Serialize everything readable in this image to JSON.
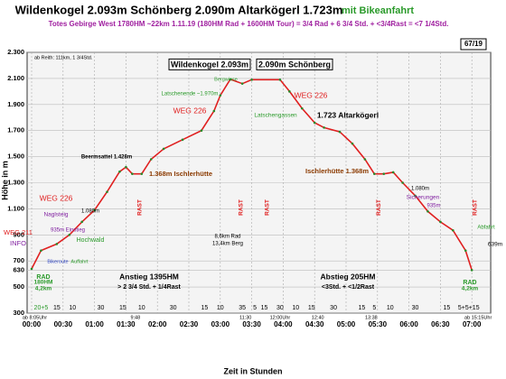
{
  "chart_data": {
    "type": "line",
    "title": "Wildenkogel 2.093m Schönberg 2.090m Altarkögerl 1.723m",
    "title_extra": "mit Bikeanfahrt",
    "subtitle": "Totes Gebirge West 1780HM ~22km 1.11.19 (180HM Rad + 1600HM Tour) = 3/4 Rad + 6 3/4 Std. + <3/4Rast = <7 1/4Std.",
    "badge": "67/19",
    "x_label": "Zeit in Stunden",
    "y_label": "Höhe in m",
    "xlim": [
      0,
      7.3
    ],
    "ylim": [
      300,
      2300
    ],
    "xticks": [
      {
        "value": 0,
        "label": "00:00"
      },
      {
        "value": 0.5,
        "label": "00:30"
      },
      {
        "value": 1,
        "label": "01:00"
      },
      {
        "value": 1.5,
        "label": "01:30"
      },
      {
        "value": 2,
        "label": "02:00"
      },
      {
        "value": 2.5,
        "label": "02:30"
      },
      {
        "value": 3,
        "label": "03:00"
      },
      {
        "value": 3.5,
        "label": "03:30"
      },
      {
        "value": 4,
        "label": "04:00"
      },
      {
        "value": 4.5,
        "label": "04:30"
      },
      {
        "value": 5,
        "label": "05:00"
      },
      {
        "value": 5.5,
        "label": "05:30"
      },
      {
        "value": 6,
        "label": "06:00"
      },
      {
        "value": 6.5,
        "label": "06:30"
      },
      {
        "value": 7,
        "label": "07:00"
      }
    ],
    "yticks": [
      {
        "value": 2300,
        "label": "2.300"
      },
      {
        "value": 2100,
        "label": "2.100"
      },
      {
        "value": 1900,
        "label": "1.900"
      },
      {
        "value": 1700,
        "label": "1.700"
      },
      {
        "value": 1500,
        "label": "1.500"
      },
      {
        "value": 1300,
        "label": "1.300"
      },
      {
        "value": 1100,
        "label": "1.100"
      },
      900,
      700,
      630,
      500,
      300
    ],
    "grid": true,
    "series": [
      {
        "name": "Höhenprofil",
        "color": "#e02020",
        "x": [
          0,
          0.15,
          0.4,
          0.6,
          0.8,
          1.0,
          1.2,
          1.4,
          1.5,
          1.6,
          1.75,
          1.9,
          2.1,
          2.4,
          2.7,
          2.9,
          3.0,
          3.16,
          3.35,
          3.5,
          3.95,
          4.1,
          4.3,
          4.5,
          4.65,
          4.9,
          5.1,
          5.3,
          5.45,
          5.6,
          5.75,
          5.9,
          6.1,
          6.3,
          6.5,
          6.7,
          6.9,
          7.0
        ],
        "values": [
          640,
          780,
          830,
          900,
          1000,
          1090,
          1230,
          1385,
          1420,
          1368,
          1368,
          1480,
          1560,
          1630,
          1700,
          1850,
          1970,
          2093,
          2060,
          2090,
          2090,
          2000,
          1870,
          1760,
          1723,
          1690,
          1600,
          1480,
          1368,
          1368,
          1380,
          1300,
          1200,
          1080,
          1000,
          935,
          780,
          630
        ]
      }
    ],
    "annotations": [
      "ab Reith: 111km, 1 3/4Std.",
      "Wildenkogel 2.093m",
      "2.090m Schönberg",
      "1.723 Altarkögerl",
      "WEG 226",
      "WEG 226",
      "WEG 226",
      "Naglsteig",
      "1.080m",
      "935m Einstieg",
      "Hochwald",
      "Bikeroute",
      "Auffahrt",
      "Beermsattel 1.428m",
      "1.368m Ischlerhütte",
      "Ischlerhütte 1.368m",
      "Latschenende ~1.970m",
      "Bergwiese",
      "Latschengassen",
      "1.080m",
      "Sicherungen",
      "935m",
      "Abfahrt",
      "INFO",
      "WEG 211",
      "639m",
      "8,6km Rad",
      "13,4km Berg",
      "Anstieg 1395HM",
      "> 2 3/4 Std. + 1/4Rast",
      "Abstieg 205HM",
      "<3Std. + <1/2Rast",
      "RAD",
      "180HM",
      "4,2km",
      "RAD",
      "4,2km"
    ],
    "rast": [
      "RAST",
      "RAST",
      "RAST",
      "RAST",
      "RAST"
    ],
    "durations": [
      "20+5",
      "15",
      "10",
      "30",
      "15",
      "10",
      "30",
      "15",
      "10",
      "35",
      "5",
      "15",
      "30",
      "10",
      "15",
      "30",
      "15",
      "5",
      "10",
      "30",
      "15",
      "5+5+15"
    ],
    "clock": [
      "ab 8:05Uhr",
      "9:48",
      "11:30",
      "12:00Uhr",
      "12:40",
      "13:38",
      "ab 15:15Uhr"
    ]
  }
}
